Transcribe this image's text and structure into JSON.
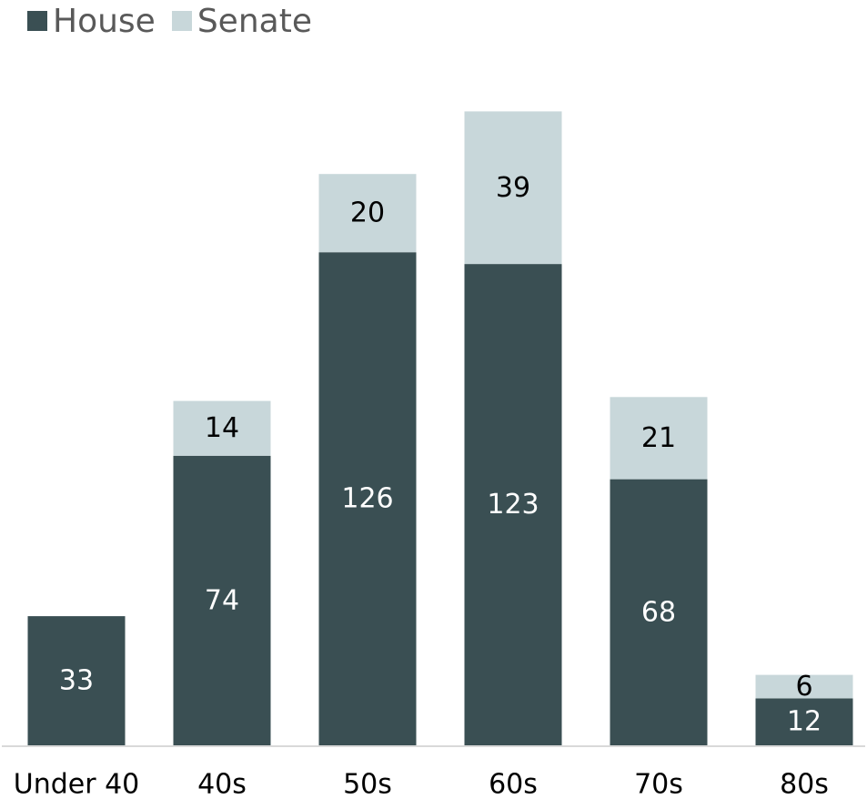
{
  "chart_data": {
    "type": "bar",
    "stacked": true,
    "categories": [
      "Under 40",
      "40s",
      "50s",
      "60s",
      "70s",
      "80s"
    ],
    "series": [
      {
        "name": "House",
        "color": "#3a4f53",
        "label_color": "#ffffff",
        "values": [
          33,
          74,
          126,
          123,
          68,
          12
        ]
      },
      {
        "name": "Senate",
        "color": "#c8d7da",
        "label_color": "#000000",
        "values": [
          null,
          14,
          20,
          39,
          21,
          6
        ]
      }
    ],
    "title": "",
    "xlabel": "",
    "ylabel": "",
    "ylim": [
      0,
      165
    ],
    "grid": false,
    "legend": "top-left"
  }
}
